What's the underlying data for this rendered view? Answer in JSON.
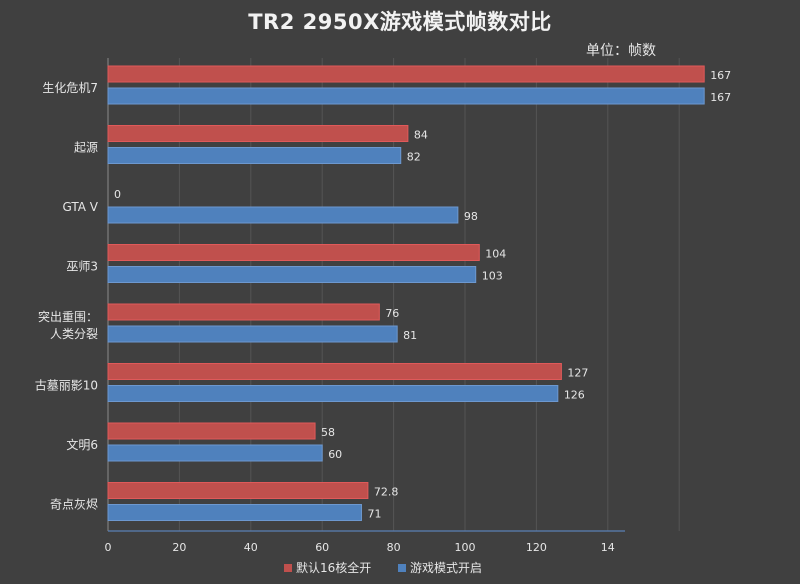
{
  "chart_data": {
    "type": "bar",
    "orientation": "horizontal",
    "title": "TR2 2950X游戏模式帧数对比",
    "unit_label": "单位：帧数",
    "categories": [
      [
        "生化危机7"
      ],
      [
        "起源"
      ],
      [
        "GTA V"
      ],
      [
        "巫师3"
      ],
      [
        "突出重围：",
        "人类分裂"
      ],
      [
        "古墓丽影10"
      ],
      [
        "文明6"
      ],
      [
        "奇点灰烬"
      ]
    ],
    "series": [
      {
        "name": "默认16核全开",
        "color": "#c0504d",
        "values": [
          167,
          84,
          0,
          104,
          76,
          127,
          58,
          72.8
        ]
      },
      {
        "name": "游戏模式开启",
        "color": "#4f81bd",
        "values": [
          167,
          82,
          98,
          103,
          81,
          126,
          60,
          71
        ]
      }
    ],
    "x_ticks": [
      "0",
      "20",
      "40",
      "60",
      "80",
      "100",
      "120",
      "14"
    ],
    "xlim": [
      0,
      180
    ],
    "grid": true,
    "legend_position": "bottom"
  }
}
